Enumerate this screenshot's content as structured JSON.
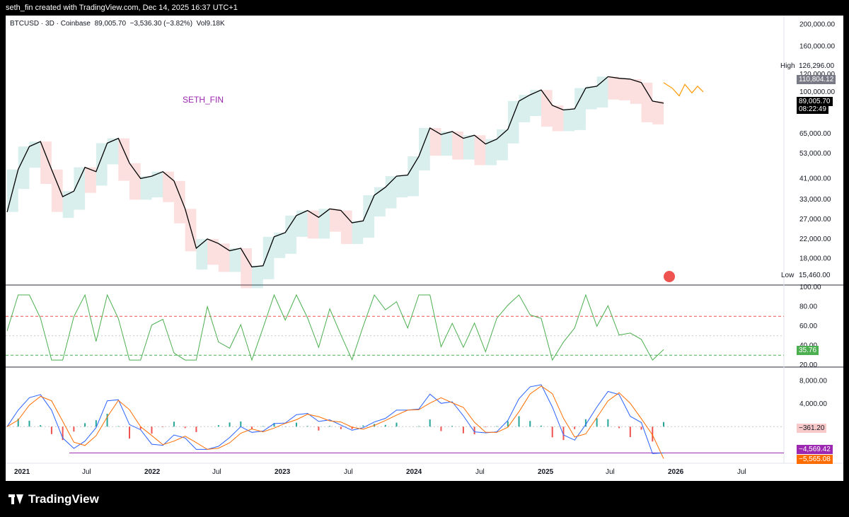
{
  "header": {
    "caption": "seth_fin created with TradingView.com, Dec 14, 2025 16:37 UTC+1"
  },
  "symbol": {
    "name": "BTCUSD",
    "timeframe": "3D",
    "exchange": "Coinbase",
    "price": "89,005.70",
    "change": "−3,536.30 (−3.82%)",
    "volume": "Vol9.18K",
    "separator": "·"
  },
  "author_label": "SETH_FIN",
  "price_panel": {
    "axis_ticks": [
      {
        "label": "200,000.00",
        "value": 200000
      },
      {
        "label": "160,000.00",
        "value": 160000
      },
      {
        "label": "120,000.00",
        "value": 120000
      },
      {
        "label": "100,000.00",
        "value": 100000
      },
      {
        "label": "65,000.00",
        "value": 65000
      },
      {
        "label": "53,000.00",
        "value": 53000
      },
      {
        "label": "41,000.00",
        "value": 41000
      },
      {
        "label": "33,000.00",
        "value": 33000
      },
      {
        "label": "27,000.00",
        "value": 27000
      },
      {
        "label": "22,000.00",
        "value": 22000
      },
      {
        "label": "18,000.00",
        "value": 18000
      },
      {
        "label": "15,460.00",
        "value": 15460
      }
    ],
    "high_label": "High",
    "high_value": "126,296.00",
    "low_label": "Low",
    "low_value": "15,460.00",
    "tag_level": "110,804.12",
    "tag_price": "89,005.70",
    "tag_countdown": "08:22:49",
    "colors": {
      "line": "#000000",
      "bull": "#26a69a",
      "bear": "#ef5350",
      "projection": "#ff9800"
    }
  },
  "rsi_panel": {
    "axis_ticks": [
      "100.00",
      "80.00",
      "60.00",
      "40.00",
      "20.00"
    ],
    "current": "35.76",
    "upper_band": 70,
    "lower_band": 30
  },
  "macd_panel": {
    "axis_ticks": [
      "8,000.00",
      "4,000.00",
      "-4,000.00"
    ],
    "tag_hist": "−361.20",
    "tag_level": "−4,569.42",
    "tag_signal": "−5,565.08",
    "colors": {
      "macd": "#2962ff",
      "signal": "#ff6d00",
      "level": "#9c27b0"
    }
  },
  "time_axis": [
    "2021",
    "Jul",
    "2022",
    "Jul",
    "2023",
    "Jul",
    "2024",
    "Jul",
    "2025",
    "Jul",
    "2026",
    "Jul"
  ],
  "footer": {
    "brand": "TradingView"
  },
  "chart_data": {
    "type": "line",
    "title": "",
    "series": [
      {
        "name": "BTCUSD",
        "x": [
          "2021-01",
          "2021-02",
          "2021-03",
          "2021-04",
          "2021-05",
          "2021-06",
          "2021-07",
          "2021-08",
          "2021-09",
          "2021-10",
          "2021-11",
          "2021-12",
          "2022-01",
          "2022-02",
          "2022-03",
          "2022-04",
          "2022-05",
          "2022-06",
          "2022-07",
          "2022-08",
          "2022-09",
          "2022-10",
          "2022-11",
          "2022-12",
          "2023-01",
          "2023-02",
          "2023-03",
          "2023-04",
          "2023-05",
          "2023-06",
          "2023-07",
          "2023-08",
          "2023-09",
          "2023-10",
          "2023-11",
          "2023-12",
          "2024-01",
          "2024-02",
          "2024-03",
          "2024-04",
          "2024-05",
          "2024-06",
          "2024-07",
          "2024-08",
          "2024-09",
          "2024-10",
          "2024-11",
          "2024-12",
          "2025-01",
          "2025-02",
          "2025-03",
          "2025-04",
          "2025-05",
          "2025-06",
          "2025-07",
          "2025-08",
          "2025-09",
          "2025-10",
          "2025-11",
          "2025-12"
        ],
        "values": [
          29000,
          45000,
          57000,
          60000,
          45000,
          34000,
          36000,
          46000,
          44000,
          59000,
          62000,
          48000,
          41000,
          42000,
          44000,
          40000,
          30000,
          20000,
          22000,
          21000,
          19500,
          20000,
          16500,
          16700,
          22500,
          23500,
          28000,
          29500,
          27500,
          30000,
          29500,
          26000,
          26500,
          34500,
          37500,
          42000,
          42500,
          51500,
          69000,
          64500,
          66500,
          62000,
          64000,
          58500,
          61500,
          68000,
          91000,
          97000,
          102000,
          87000,
          83000,
          84000,
          104000,
          106000,
          117000,
          115000,
          114000,
          110000,
          91000,
          89005.7
        ]
      }
    ],
    "rsi": {
      "name": "RSI",
      "last": 35.76,
      "upper": 70,
      "lower": 30,
      "ylim": [
        20,
        100
      ]
    },
    "macd": {
      "last_macd": -4569.42,
      "last_signal": -5565.08,
      "last_hist": -361.2,
      "ylim": [
        -6000,
        10000
      ]
    },
    "y_scale": "log",
    "ylim": [
      14000,
      210000
    ],
    "grid": false,
    "legend": "none"
  }
}
